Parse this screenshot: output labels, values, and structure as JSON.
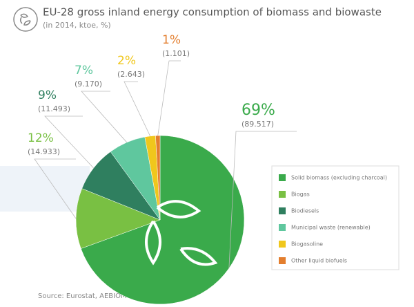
{
  "chart_data": {
    "type": "pie",
    "title": "EU-28 gross inland energy consumption of biomass and biowaste",
    "subtitle": "(in 2014, ktoe, %)",
    "categories": [
      "Solid biomass (excluding charcoal)",
      "Biogas",
      "Biodiesels",
      "Municipal waste (renewable)",
      "Biogasoline",
      "Other liquid biofuels"
    ],
    "values": [
      89517,
      14933,
      11493,
      9170,
      2643,
      1101
    ],
    "value_labels": [
      "(89.517)",
      "(14.933)",
      "(11.493)",
      "(9.170)",
      "(2.643)",
      "(1.101)"
    ],
    "percents": [
      69,
      12,
      9,
      7,
      2,
      1
    ],
    "percent_labels": [
      "69%",
      "12%",
      "9%",
      "7%",
      "2%",
      "1%"
    ],
    "colors": [
      "#3aaa4b",
      "#79c043",
      "#2f7f5f",
      "#5fc79e",
      "#f0c71c",
      "#e37e2e"
    ],
    "source": "Source: Eurostat, AEBIOM's calculations"
  }
}
